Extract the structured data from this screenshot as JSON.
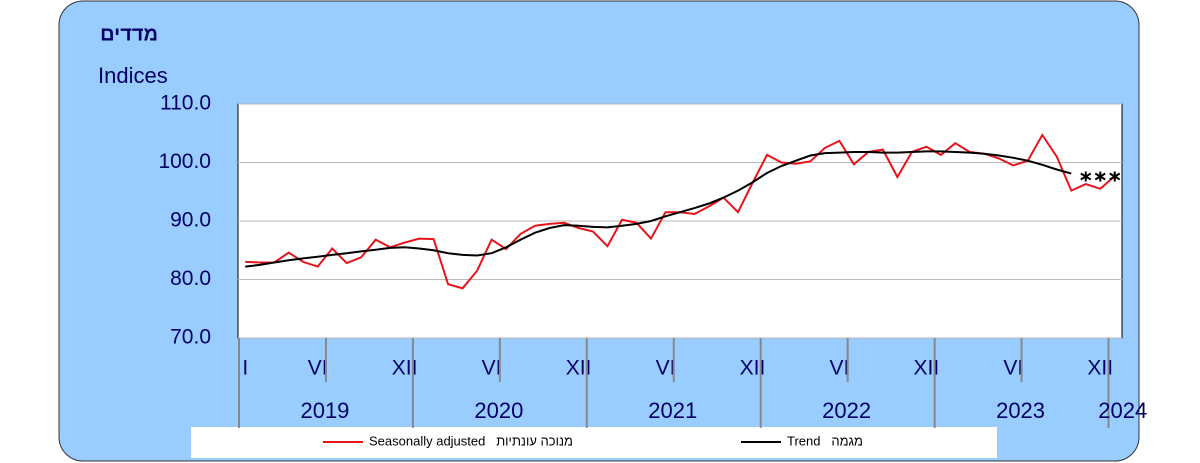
{
  "chart_data": {
    "type": "line",
    "title": "מדדים",
    "y_label": "Indices",
    "categories": [
      "I",
      null,
      null,
      null,
      null,
      "VI",
      null,
      null,
      null,
      null,
      null,
      "XII",
      null,
      null,
      null,
      null,
      null,
      "VI",
      null,
      null,
      null,
      null,
      null,
      "XII",
      null,
      null,
      null,
      null,
      null,
      "VI",
      null,
      null,
      null,
      null,
      null,
      "XII",
      null,
      null,
      null,
      null,
      null,
      "VI",
      null,
      null,
      null,
      null,
      null,
      "XII",
      null,
      null,
      null,
      null,
      null,
      "VI",
      null,
      null,
      null,
      null,
      null,
      "XII",
      null
    ],
    "years": [
      "2019",
      "2020",
      "2021",
      "2022",
      "2023",
      "2024"
    ],
    "series": [
      {
        "name": "Seasonally adjusted   מנוכה עונתיות",
        "color": "#e8141b",
        "values": [
          83.0,
          82.9,
          82.9,
          84.6,
          83.0,
          82.2,
          85.3,
          82.8,
          83.8,
          86.8,
          85.5,
          86.3,
          87.0,
          86.9,
          79.2,
          78.5,
          81.5,
          86.8,
          85.2,
          87.8,
          89.2,
          89.5,
          89.7,
          88.8,
          88.2,
          85.7,
          90.2,
          89.7,
          87.0,
          91.5,
          91.5,
          91.2,
          92.5,
          94.0,
          91.5,
          96.5,
          101.3,
          100.0,
          99.8,
          100.2,
          102.5,
          103.7,
          99.7,
          101.8,
          102.2,
          97.5,
          101.8,
          102.7,
          101.3,
          103.3,
          101.8,
          101.5,
          100.7,
          99.5,
          100.3,
          104.7,
          101.0,
          95.2,
          96.3,
          95.5,
          97.7
        ]
      },
      {
        "name": "Trend   מגמה",
        "color": "#000000",
        "values": [
          82.2,
          82.5,
          82.9,
          83.3,
          83.6,
          83.9,
          84.2,
          84.5,
          84.8,
          85.1,
          85.4,
          85.5,
          85.3,
          85.0,
          84.5,
          84.2,
          84.1,
          84.5,
          85.5,
          86.8,
          88.0,
          88.8,
          89.3,
          89.2,
          89.0,
          88.9,
          89.2,
          89.5,
          90.0,
          90.8,
          91.5,
          92.2,
          93.0,
          94.0,
          95.2,
          96.6,
          98.2,
          99.4,
          100.3,
          101.2,
          101.6,
          101.7,
          101.8,
          101.8,
          101.7,
          101.7,
          101.8,
          101.9,
          101.9,
          101.8,
          101.7,
          101.5,
          101.2,
          100.8,
          100.3,
          99.6,
          98.8,
          98.1,
          null,
          null,
          null
        ]
      }
    ],
    "provisional_trend": {
      "color": "#000000",
      "values": [
        null,
        null,
        null,
        null,
        null,
        null,
        null,
        null,
        null,
        null,
        null,
        null,
        null,
        null,
        null,
        null,
        null,
        null,
        null,
        null,
        null,
        null,
        null,
        null,
        null,
        null,
        null,
        null,
        null,
        null,
        null,
        null,
        null,
        null,
        null,
        null,
        null,
        null,
        null,
        null,
        null,
        null,
        null,
        null,
        null,
        null,
        null,
        null,
        null,
        null,
        null,
        null,
        null,
        null,
        null,
        null,
        null,
        null,
        97.6,
        97.6,
        97.6
      ]
    },
    "ylim": [
      70,
      110
    ],
    "yticks": [
      {
        "value": 70,
        "label": "70.0"
      },
      {
        "value": 80,
        "label": "80.0"
      },
      {
        "value": 90,
        "label": "90.0"
      },
      {
        "value": 100,
        "label": "100.0"
      },
      {
        "value": 110,
        "label": "110.0"
      }
    ],
    "grid": true
  }
}
